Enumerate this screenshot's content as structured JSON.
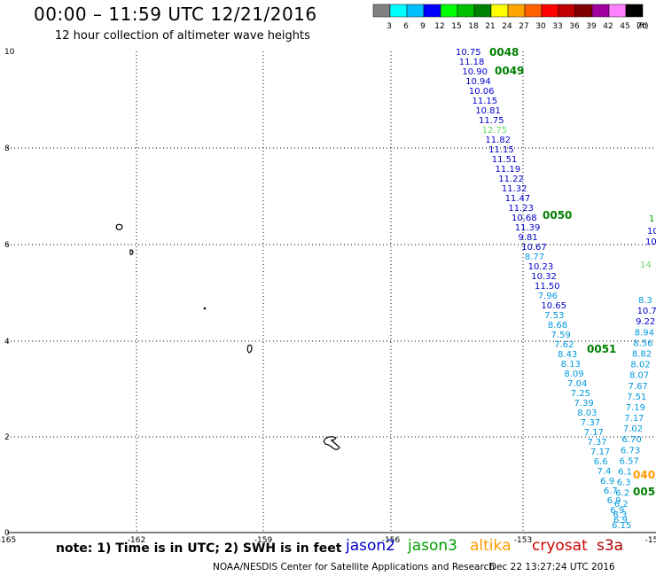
{
  "header": {
    "title": "00:00 – 11:59 UTC 12/21/2016",
    "subtitle": "12 hour collection of altimeter wave heights"
  },
  "colorbar": {
    "colors": [
      "#808080",
      "#00ffff",
      "#00bfff",
      "#0000ff",
      "#00ff00",
      "#00c000",
      "#008000",
      "#ffff00",
      "#ffa500",
      "#ff6000",
      "#ff0000",
      "#c00000",
      "#800000",
      "#a000a0",
      "#ff80ff",
      "#000000"
    ],
    "labels": [
      "3",
      "6",
      "9",
      "12",
      "15",
      "18",
      "21",
      "24",
      "27",
      "30",
      "33",
      "36",
      "39",
      "42",
      "45",
      "70"
    ],
    "unit": "(ft)"
  },
  "axes": {
    "x_ticks": [
      "-165",
      "-162",
      "-159",
      "-156",
      "-153",
      "-15"
    ],
    "y_ticks": [
      "10",
      "8",
      "6",
      "4",
      "2",
      "0"
    ]
  },
  "note": "note: 1) Time is in UTC; 2) SWH is in feet",
  "satellites": [
    {
      "name": "jason2",
      "color": "#0000cc"
    },
    {
      "name": "jason3",
      "color": "#00a000"
    },
    {
      "name": "altika",
      "color": "#ff9900"
    },
    {
      "name": "cryosat",
      "color": "#cc0000"
    },
    {
      "name": "s3a",
      "color": "#b00000"
    }
  ],
  "footer": {
    "left": "NOAA/NESDIS Center for Satellite Applications and Research",
    "right": "Dec 22 13:27:24 UTC 2016"
  },
  "chart_data": {
    "type": "scatter",
    "xlim": [
      -165,
      -153
    ],
    "ylim": [
      0,
      10
    ],
    "time_labels": [
      {
        "text": "0048",
        "color": "#008000"
      },
      {
        "text": "0049",
        "color": "#008000"
      },
      {
        "text": "0050",
        "color": "#008000"
      },
      {
        "text": "0051",
        "color": "#008000"
      },
      {
        "text": "040",
        "color": "#ff9900"
      },
      {
        "text": "005",
        "color": "#008000"
      }
    ],
    "track1": [
      {
        "v": "10.75",
        "c": "#0000cc"
      },
      {
        "v": "11.18",
        "c": "#0000cc"
      },
      {
        "v": "10.90",
        "c": "#0000cc"
      },
      {
        "v": "10.94",
        "c": "#0000cc"
      },
      {
        "v": "10.06",
        "c": "#0000cc"
      },
      {
        "v": "11.15",
        "c": "#0000cc"
      },
      {
        "v": "10.81",
        "c": "#0000cc"
      },
      {
        "v": "11.75",
        "c": "#0000cc"
      },
      {
        "v": "12.75",
        "c": "#66dd66"
      },
      {
        "v": "11.82",
        "c": "#0000cc"
      },
      {
        "v": "11.15",
        "c": "#0000cc"
      },
      {
        "v": "11.51",
        "c": "#0000cc"
      },
      {
        "v": "11.19",
        "c": "#0000cc"
      },
      {
        "v": "11.22",
        "c": "#0000cc"
      },
      {
        "v": "11.32",
        "c": "#0000cc"
      },
      {
        "v": "11.47",
        "c": "#0000cc"
      },
      {
        "v": "11.23",
        "c": "#0000cc"
      },
      {
        "v": "10.68",
        "c": "#0000cc"
      },
      {
        "v": "11.39",
        "c": "#0000cc"
      },
      {
        "v": "9.81",
        "c": "#0000cc"
      },
      {
        "v": "10.67",
        "c": "#0000cc"
      },
      {
        "v": "8.77",
        "c": "#0099dd"
      },
      {
        "v": "10.23",
        "c": "#0000cc"
      },
      {
        "v": "10.32",
        "c": "#0000cc"
      },
      {
        "v": "11.50",
        "c": "#0000cc"
      },
      {
        "v": "7.96",
        "c": "#0099dd"
      },
      {
        "v": "10.65",
        "c": "#0000cc"
      },
      {
        "v": "7.53",
        "c": "#0099dd"
      },
      {
        "v": "8.68",
        "c": "#0099dd"
      },
      {
        "v": "7.59",
        "c": "#0099dd"
      },
      {
        "v": "7.62",
        "c": "#0099dd"
      },
      {
        "v": "8.43",
        "c": "#0099dd"
      },
      {
        "v": "8.13",
        "c": "#0099dd"
      },
      {
        "v": "8.09",
        "c": "#0099dd"
      },
      {
        "v": "7.04",
        "c": "#0099dd"
      },
      {
        "v": "7.25",
        "c": "#0099dd"
      },
      {
        "v": "7.39",
        "c": "#0099dd"
      },
      {
        "v": "8.03",
        "c": "#0099dd"
      },
      {
        "v": "7.37",
        "c": "#0099dd"
      },
      {
        "v": "7.17",
        "c": "#0099dd"
      },
      {
        "v": "7.37",
        "c": "#0099dd"
      },
      {
        "v": "7.17",
        "c": "#0099dd"
      },
      {
        "v": "6.6",
        "c": "#0099dd"
      },
      {
        "v": "7.4",
        "c": "#0099dd"
      },
      {
        "v": "6.9",
        "c": "#0099dd"
      },
      {
        "v": "6.7",
        "c": "#0099dd"
      },
      {
        "v": "6.9",
        "c": "#0099dd"
      },
      {
        "v": "6.9",
        "c": "#0099dd"
      },
      {
        "v": "6.9",
        "c": "#0099dd"
      }
    ],
    "track2": [
      {
        "v": "8.3",
        "c": "#0099dd"
      },
      {
        "v": "10.75",
        "c": "#0000cc"
      },
      {
        "v": "9.22",
        "c": "#0000cc"
      },
      {
        "v": "8.94",
        "c": "#0099dd"
      },
      {
        "v": "8.56",
        "c": "#0099dd"
      },
      {
        "v": "8.82",
        "c": "#0099dd"
      },
      {
        "v": "8.02",
        "c": "#0099dd"
      },
      {
        "v": "8.07",
        "c": "#0099dd"
      },
      {
        "v": "7.67",
        "c": "#0099dd"
      },
      {
        "v": "7.51",
        "c": "#0099dd"
      },
      {
        "v": "7.19",
        "c": "#0099dd"
      },
      {
        "v": "7.17",
        "c": "#0099dd"
      },
      {
        "v": "7.02",
        "c": "#0099dd"
      },
      {
        "v": "6.70",
        "c": "#0099dd"
      },
      {
        "v": "6.73",
        "c": "#0099dd"
      },
      {
        "v": "6.57",
        "c": "#0099dd"
      },
      {
        "v": "6.1",
        "c": "#0099dd"
      },
      {
        "v": "6.3",
        "c": "#0099dd"
      },
      {
        "v": "6.2",
        "c": "#0099dd"
      },
      {
        "v": "6.2",
        "c": "#0099dd"
      },
      {
        "v": "6.3",
        "c": "#0099dd"
      },
      {
        "v": "6.15",
        "c": "#0099dd"
      }
    ],
    "edge_values": [
      {
        "v": "1",
        "c": "#00a000"
      },
      {
        "v": "10",
        "c": "#0000cc"
      },
      {
        "v": "10",
        "c": "#0000cc"
      },
      {
        "v": "14",
        "c": "#66dd66"
      }
    ]
  }
}
